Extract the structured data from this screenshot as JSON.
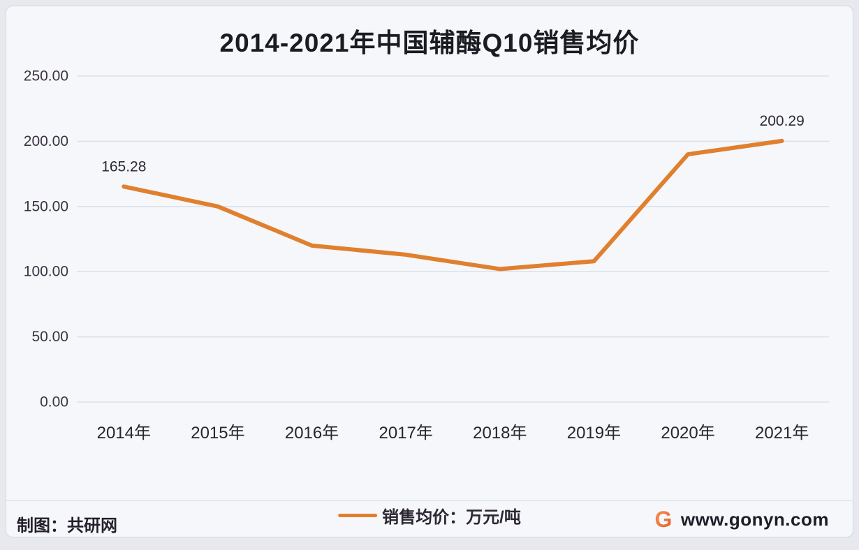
{
  "chart_data": {
    "type": "line",
    "title": "2014-2021年中国辅酶Q10销售均价",
    "categories": [
      "2014年",
      "2015年",
      "2016年",
      "2017年",
      "2018年",
      "2019年",
      "2020年",
      "2021年"
    ],
    "series": [
      {
        "name": "销售均价：万元/吨",
        "values": [
          165.28,
          150,
          120,
          113,
          102,
          108,
          190,
          200.29
        ],
        "color": "#E0802F"
      }
    ],
    "point_labels": [
      {
        "index": 0,
        "label": "165.28"
      },
      {
        "index": 7,
        "label": "200.29"
      }
    ],
    "xlabel": "",
    "ylabel": "",
    "ylim": [
      0,
      250
    ],
    "y_ticks": [
      {
        "value": 0,
        "label": "0.00"
      },
      {
        "value": 50,
        "label": "50.00"
      },
      {
        "value": 100,
        "label": "100.00"
      },
      {
        "value": 150,
        "label": "150.00"
      },
      {
        "value": 200,
        "label": "200.00"
      },
      {
        "value": 250,
        "label": "250.00"
      }
    ],
    "grid": true,
    "legend_position": "bottom"
  },
  "legend": {
    "label": "销售均价：万元/吨"
  },
  "footer": {
    "credit": "制图：共研网",
    "website": "www.gonyn.com",
    "logo_letter": "G"
  },
  "colors": {
    "line": "#E0802F",
    "gridline": "#dce1e9",
    "card_background": "#f5f7fa",
    "page_background": "#e7e9ee",
    "title_text": "#1b1b24",
    "logo_gradient_start": "#f6955a",
    "logo_gradient_end": "#e55a28"
  }
}
